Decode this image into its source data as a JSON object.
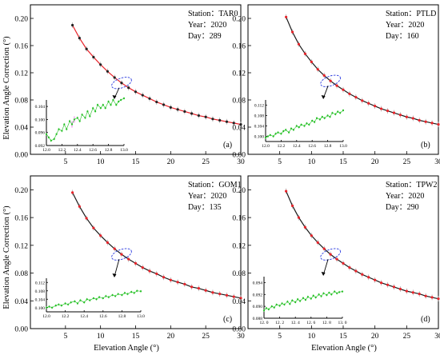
{
  "figure": {
    "ylabel": "Elevation Angle Correction (°)",
    "xlabel": "Elevation Angle (°)"
  },
  "chart_data": [
    {
      "type": "line",
      "panel_label": "(a)",
      "annotation": {
        "station": "Station：TAR0",
        "year": "Year：2020",
        "day": "Day：289"
      },
      "xlim": [
        0,
        30
      ],
      "ylim": [
        0,
        0.22
      ],
      "xticks": [
        5,
        10,
        15,
        20,
        25,
        30
      ],
      "yticks": [
        0.0,
        0.04,
        0.08,
        0.12,
        0.16,
        0.2
      ],
      "series": [
        {
          "color": "#e8232a",
          "marker_color": "#222222",
          "x": [
            6,
            7,
            8,
            9,
            10,
            11,
            12,
            13,
            14,
            15,
            16,
            17,
            18,
            19,
            20,
            21,
            22,
            23,
            24,
            25,
            26,
            27,
            28,
            29,
            30
          ],
          "y": [
            0.19,
            0.171,
            0.155,
            0.143,
            0.132,
            0.122,
            0.113,
            0.105,
            0.098,
            0.092,
            0.087,
            0.082,
            0.077,
            0.073,
            0.069,
            0.066,
            0.063,
            0.06,
            0.057,
            0.055,
            0.052,
            0.05,
            0.048,
            0.046,
            0.044
          ]
        }
      ],
      "inset": {
        "xlim": [
          12.0,
          13.0
        ],
        "ylim": [
          0.092,
          0.106
        ],
        "xticks": [
          "12.0",
          "12.2",
          "12.4",
          "12.6",
          "12.8",
          "13.0"
        ],
        "yticks": [
          "0.092",
          "0.096",
          "0.100",
          "0.104"
        ],
        "color": "#22c022",
        "highlight": "#f08cf0",
        "x": [
          12.0,
          12.03,
          12.06,
          12.1,
          12.13,
          12.16,
          12.2,
          12.23,
          12.26,
          12.3,
          12.33,
          12.36,
          12.4,
          12.43,
          12.46,
          12.5,
          12.53,
          12.56,
          12.6,
          12.63,
          12.66,
          12.7,
          12.73,
          12.76,
          12.8,
          12.83,
          12.86,
          12.9,
          12.93,
          12.96,
          13.0
        ],
        "y": [
          0.0955,
          0.0945,
          0.0935,
          0.094,
          0.0955,
          0.097,
          0.0965,
          0.0985,
          0.097,
          0.0995,
          0.0985,
          0.1,
          0.1005,
          0.0995,
          0.1015,
          0.1005,
          0.1025,
          0.101,
          0.1035,
          0.1025,
          0.1045,
          0.1035,
          0.1045,
          0.1035,
          0.1055,
          0.1045,
          0.106,
          0.1045,
          0.1055,
          0.106,
          0.1065
        ]
      }
    },
    {
      "type": "line",
      "panel_label": "(b)",
      "annotation": {
        "station": "Station：PTLD",
        "year": "Year：2020",
        "day": "Day：160"
      },
      "xlim": [
        0,
        30
      ],
      "ylim": [
        0,
        0.22
      ],
      "xticks": [
        5,
        10,
        15,
        20,
        25,
        30
      ],
      "yticks": [
        0.0,
        0.04,
        0.08,
        0.12,
        0.16,
        0.2
      ],
      "series": [
        {
          "color": "#1a1a1a",
          "marker_color": "#e8232a",
          "x": [
            6,
            7,
            8,
            9,
            10,
            11,
            12,
            13,
            14,
            15,
            16,
            17,
            18,
            19,
            20,
            21,
            22,
            23,
            24,
            25,
            26,
            27,
            28,
            29,
            30
          ],
          "y": [
            0.202,
            0.18,
            0.162,
            0.148,
            0.136,
            0.125,
            0.116,
            0.108,
            0.101,
            0.095,
            0.089,
            0.084,
            0.079,
            0.075,
            0.071,
            0.067,
            0.064,
            0.061,
            0.058,
            0.055,
            0.053,
            0.05,
            0.048,
            0.046,
            0.044
          ]
        }
      ],
      "inset": {
        "xlim": [
          12.0,
          13.0
        ],
        "ylim": [
          0.098,
          0.114
        ],
        "xticks": [
          "12.0",
          "12.2",
          "12.4",
          "12.6",
          "12.8",
          "13.0"
        ],
        "yticks": [
          "0.100",
          "0.104",
          "0.108",
          "0.112"
        ],
        "color": "#22c022",
        "highlight": "",
        "x": [
          12.0,
          12.03,
          12.06,
          12.1,
          12.13,
          12.16,
          12.2,
          12.23,
          12.26,
          12.3,
          12.33,
          12.36,
          12.4,
          12.43,
          12.46,
          12.5,
          12.53,
          12.56,
          12.6,
          12.63,
          12.66,
          12.7,
          12.73,
          12.76,
          12.8,
          12.83,
          12.86,
          12.9,
          12.93,
          12.96,
          13.0
        ],
        "y": [
          0.0995,
          0.1,
          0.1005,
          0.1,
          0.101,
          0.1015,
          0.101,
          0.102,
          0.1025,
          0.1015,
          0.103,
          0.1025,
          0.104,
          0.1035,
          0.1045,
          0.104,
          0.105,
          0.1045,
          0.106,
          0.1055,
          0.107,
          0.1065,
          0.1075,
          0.107,
          0.108,
          0.1075,
          0.109,
          0.1085,
          0.1095,
          0.109,
          0.11
        ]
      }
    },
    {
      "type": "line",
      "panel_label": "(c)",
      "annotation": {
        "station": "Station：GOM1",
        "year": "Year：2020",
        "day": "Day：135"
      },
      "xlim": [
        0,
        30
      ],
      "ylim": [
        0,
        0.22
      ],
      "xticks": [
        5,
        10,
        15,
        20,
        25,
        30
      ],
      "yticks": [
        0.0,
        0.04,
        0.08,
        0.12,
        0.16,
        0.2
      ],
      "series": [
        {
          "color": "#1a1a1a",
          "marker_color": "#e8232a",
          "x": [
            6,
            7,
            8,
            9,
            10,
            11,
            12,
            13,
            14,
            15,
            16,
            17,
            18,
            19,
            20,
            21,
            22,
            23,
            24,
            25,
            26,
            27,
            28,
            29,
            30
          ],
          "y": [
            0.196,
            0.176,
            0.159,
            0.145,
            0.134,
            0.124,
            0.115,
            0.107,
            0.1,
            0.094,
            0.088,
            0.083,
            0.079,
            0.074,
            0.07,
            0.067,
            0.064,
            0.06,
            0.058,
            0.055,
            0.052,
            0.05,
            0.048,
            0.046,
            0.044
          ]
        }
      ],
      "inset": {
        "xlim": [
          12.0,
          13.0
        ],
        "ylim": [
          0.098,
          0.114
        ],
        "xticks": [
          "12.0",
          "12.2",
          "12.4",
          "12.6",
          "12.8",
          "13.0"
        ],
        "yticks": [
          "0.100",
          "0.104",
          "0.108",
          "0.112"
        ],
        "color": "#22c022",
        "highlight": "",
        "x": [
          12.0,
          12.03,
          12.06,
          12.1,
          12.13,
          12.16,
          12.2,
          12.23,
          12.26,
          12.3,
          12.33,
          12.36,
          12.4,
          12.43,
          12.46,
          12.5,
          12.53,
          12.56,
          12.6,
          12.63,
          12.66,
          12.7,
          12.73,
          12.76,
          12.8,
          12.83,
          12.86,
          12.9,
          12.93,
          12.96,
          13.0
        ],
        "y": [
          0.1,
          0.1005,
          0.1,
          0.101,
          0.1015,
          0.101,
          0.102,
          0.1015,
          0.1025,
          0.103,
          0.102,
          0.1035,
          0.1025,
          0.104,
          0.1035,
          0.1045,
          0.104,
          0.105,
          0.1045,
          0.1055,
          0.105,
          0.106,
          0.1055,
          0.1065,
          0.106,
          0.107,
          0.1065,
          0.1075,
          0.107,
          0.108,
          0.1078
        ]
      }
    },
    {
      "type": "line",
      "panel_label": "(d)",
      "annotation": {
        "station": "Station：TPW2",
        "year": "Year：2020",
        "day": "Day：290"
      },
      "xlim": [
        0,
        30
      ],
      "ylim": [
        0,
        0.22
      ],
      "xticks": [
        5,
        10,
        15,
        20,
        25,
        30
      ],
      "yticks": [
        0.0,
        0.04,
        0.08,
        0.12,
        0.16,
        0.2
      ],
      "series": [
        {
          "color": "#1a1a1a",
          "marker_color": "#e8232a",
          "x": [
            6,
            7,
            8,
            9,
            10,
            11,
            12,
            13,
            14,
            15,
            16,
            17,
            18,
            19,
            20,
            21,
            22,
            23,
            24,
            25,
            26,
            27,
            28,
            29,
            30
          ],
          "y": [
            0.198,
            0.177,
            0.16,
            0.146,
            0.134,
            0.124,
            0.115,
            0.107,
            0.1,
            0.094,
            0.088,
            0.083,
            0.078,
            0.074,
            0.07,
            0.066,
            0.063,
            0.06,
            0.057,
            0.054,
            0.052,
            0.05,
            0.047,
            0.045,
            0.043
          ]
        }
      ],
      "inset": {
        "xlim": [
          12.0,
          13.0
        ],
        "ylim": [
          0.088,
          0.095
        ],
        "xticks": [
          "12. 0",
          "12. 2",
          "12. 4",
          "12. 6",
          "12. 8",
          "13. 0"
        ],
        "yticks": [
          "0.088",
          "0.090",
          "0.092",
          "0.094"
        ],
        "color": "#22c022",
        "highlight": "",
        "x": [
          12.0,
          12.03,
          12.06,
          12.1,
          12.13,
          12.16,
          12.2,
          12.23,
          12.26,
          12.3,
          12.33,
          12.36,
          12.4,
          12.43,
          12.46,
          12.5,
          12.53,
          12.56,
          12.6,
          12.63,
          12.66,
          12.7,
          12.73,
          12.76,
          12.8,
          12.83,
          12.86,
          12.9,
          12.93,
          12.96,
          13.0
        ],
        "y": [
          0.0893,
          0.0897,
          0.0895,
          0.09,
          0.0898,
          0.0903,
          0.0901,
          0.0905,
          0.0903,
          0.0908,
          0.0904,
          0.091,
          0.0907,
          0.0912,
          0.0909,
          0.0914,
          0.0911,
          0.0916,
          0.0913,
          0.0918,
          0.0915,
          0.092,
          0.0917,
          0.0922,
          0.0919,
          0.0923,
          0.092,
          0.0925,
          0.0922,
          0.0924,
          0.0925
        ]
      }
    }
  ]
}
